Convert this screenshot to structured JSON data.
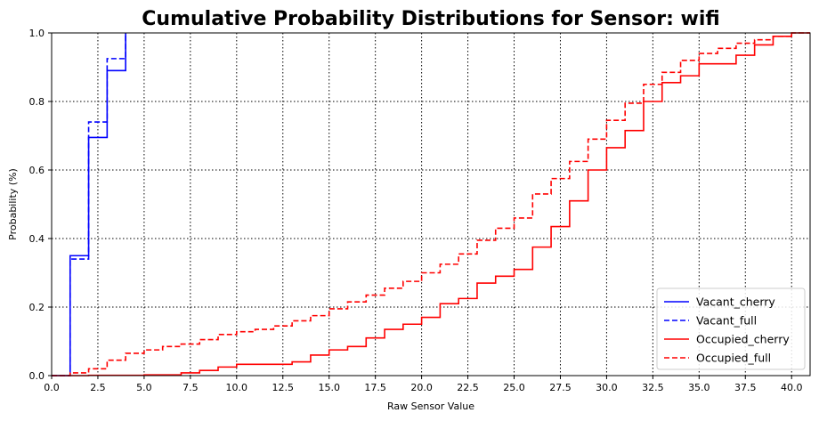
{
  "chart_data": {
    "type": "line",
    "title": "Cumulative Probability Distributions for Sensor: wifi",
    "xlabel": "Raw Sensor Value",
    "ylabel": "Probability (%)",
    "xlim": [
      0,
      41
    ],
    "ylim": [
      0,
      1
    ],
    "x_ticks": [
      0,
      2.5,
      5,
      7.5,
      10,
      12.5,
      15,
      17.5,
      20,
      22.5,
      25,
      27.5,
      30,
      32.5,
      35,
      37.5,
      40
    ],
    "x_tick_labels": [
      "0.0",
      "2.5",
      "5.0",
      "7.5",
      "10.0",
      "12.5",
      "15.0",
      "17.5",
      "20.0",
      "22.5",
      "25.0",
      "27.5",
      "30.0",
      "32.5",
      "35.0",
      "37.5",
      "40.0"
    ],
    "y_ticks": [
      0,
      0.2,
      0.4,
      0.6,
      0.8,
      1.0
    ],
    "y_tick_labels": [
      "0.0",
      "0.2",
      "0.4",
      "0.6",
      "0.8",
      "1.0"
    ],
    "grid": true,
    "legend_position": "bottom-right",
    "series": [
      {
        "name": "Vacant_cherry",
        "color": "#0000ff",
        "style": "solid",
        "step": true,
        "x": [
          0,
          1,
          2,
          3,
          4
        ],
        "y": [
          0.0,
          0.35,
          0.695,
          0.89,
          1.0
        ]
      },
      {
        "name": "Vacant_full",
        "color": "#0000ff",
        "style": "dashed",
        "step": true,
        "x": [
          0,
          1,
          2,
          3,
          4
        ],
        "y": [
          0.0,
          0.34,
          0.74,
          0.925,
          1.0
        ]
      },
      {
        "name": "Occupied_cherry",
        "color": "#ff0000",
        "style": "solid",
        "step": true,
        "x": [
          0,
          2,
          5,
          7,
          8,
          9,
          10,
          13,
          14,
          15,
          16,
          17,
          18,
          19,
          20,
          21,
          22,
          23,
          24,
          25,
          26,
          27,
          28,
          29,
          30,
          31,
          32,
          33,
          34,
          35,
          37,
          38,
          39,
          40,
          41
        ],
        "y": [
          0.0,
          0.001,
          0.002,
          0.008,
          0.015,
          0.025,
          0.033,
          0.04,
          0.06,
          0.075,
          0.085,
          0.11,
          0.135,
          0.15,
          0.17,
          0.21,
          0.225,
          0.27,
          0.29,
          0.31,
          0.375,
          0.435,
          0.51,
          0.6,
          0.665,
          0.715,
          0.8,
          0.855,
          0.875,
          0.91,
          0.935,
          0.965,
          0.99,
          1.0,
          1.0
        ]
      },
      {
        "name": "Occupied_full",
        "color": "#ff0000",
        "style": "dashed",
        "step": true,
        "x": [
          0,
          1,
          2,
          3,
          4,
          5,
          6,
          7,
          8,
          9,
          10,
          11,
          12,
          13,
          14,
          15,
          16,
          17,
          18,
          19,
          20,
          21,
          22,
          23,
          24,
          25,
          26,
          27,
          28,
          29,
          30,
          31,
          32,
          33,
          34,
          35,
          36,
          37,
          38,
          39,
          40,
          41
        ],
        "y": [
          0.0,
          0.008,
          0.02,
          0.045,
          0.065,
          0.075,
          0.085,
          0.092,
          0.105,
          0.12,
          0.128,
          0.135,
          0.145,
          0.16,
          0.175,
          0.195,
          0.215,
          0.235,
          0.255,
          0.275,
          0.3,
          0.325,
          0.355,
          0.395,
          0.43,
          0.46,
          0.53,
          0.575,
          0.625,
          0.69,
          0.745,
          0.795,
          0.85,
          0.885,
          0.92,
          0.94,
          0.955,
          0.97,
          0.98,
          0.99,
          1.0,
          1.0
        ]
      }
    ]
  }
}
